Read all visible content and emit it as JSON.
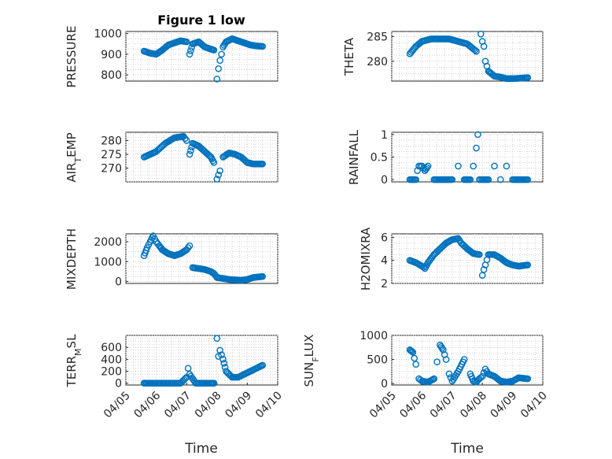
{
  "figure": {
    "title": "Figure 1 low",
    "marker_color": "#0072bd",
    "grid": "dotted"
  },
  "xaxis": {
    "label": "Time",
    "range": [
      "04/05",
      "04/10"
    ],
    "ticks": [
      "04/05",
      "04/06",
      "04/07",
      "04/08",
      "04/09",
      "04/10"
    ]
  },
  "chart_data": [
    {
      "type": "scatter",
      "ylabel": "PRESSURE",
      "ylim": [
        770,
        1010
      ],
      "yticks": [
        "800",
        "900",
        "1000"
      ],
      "x": [
        "04/05.6",
        "04/05.8",
        "04/06.0",
        "04/06.2",
        "04/06.4",
        "04/06.6",
        "04/06.8",
        "04/07.0",
        "04/07.1",
        "04/07.2",
        "04/07.4",
        "04/07.6",
        "04/07.8",
        "04/07.9",
        "04/08.0",
        "04/08.05",
        "04/08.1",
        "04/08.15",
        "04/08.2",
        "04/08.3",
        "04/08.5",
        "04/08.7",
        "04/08.9",
        "04/09.1",
        "04/09.3",
        "04/09.5"
      ],
      "y": [
        915,
        905,
        900,
        920,
        945,
        955,
        965,
        960,
        900,
        950,
        960,
        935,
        925,
        920,
        780,
        830,
        870,
        900,
        935,
        960,
        975,
        965,
        955,
        945,
        940,
        938
      ]
    },
    {
      "type": "scatter",
      "ylabel": "THETA",
      "ylim": [
        276,
        286
      ],
      "yticks": [
        "280",
        "285"
      ],
      "x": [
        "04/05.6",
        "04/05.8",
        "04/06.0",
        "04/06.3",
        "04/06.6",
        "04/06.9",
        "04/07.2",
        "04/07.5",
        "04/07.8",
        "04/07.95",
        "04/08.0",
        "04/08.05",
        "04/08.1",
        "04/08.2",
        "04/08.3",
        "04/08.4",
        "04/08.6",
        "04/08.8",
        "04/09.0",
        "04/09.3",
        "04/09.5"
      ],
      "y": [
        281.5,
        283,
        284,
        284.5,
        284.5,
        284.5,
        284,
        283.5,
        282,
        285.5,
        284,
        283,
        280,
        278,
        277.5,
        277,
        276.8,
        276.5,
        276.5,
        276.6,
        276.7
      ]
    },
    {
      "type": "scatter",
      "ylabel": "AIR_TEMP",
      "ylim": [
        265,
        283
      ],
      "yticks": [
        "270",
        "275",
        "280"
      ],
      "x": [
        "04/05.6",
        "04/05.8",
        "04/06.0",
        "04/06.3",
        "04/06.6",
        "04/06.9",
        "04/07.0",
        "04/07.1",
        "04/07.2",
        "04/07.4",
        "04/07.6",
        "04/07.8",
        "04/07.9",
        "04/08.0",
        "04/08.1",
        "04/08.2",
        "04/08.4",
        "04/08.6",
        "04/08.8",
        "04/09.0",
        "04/09.2",
        "04/09.5"
      ],
      "y": [
        274,
        275,
        276,
        279,
        281,
        281.5,
        280,
        275,
        279,
        278,
        276,
        274,
        272,
        266,
        269,
        274,
        275.5,
        275,
        274,
        272,
        271.5,
        271.5
      ]
    },
    {
      "type": "scatter",
      "ylabel": "RAINFALL",
      "ylim": [
        -0.05,
        1.05
      ],
      "yticks": [
        "0",
        "0.5",
        "1"
      ],
      "x": [
        "04/05.6",
        "04/05.8",
        "04/05.85",
        "04/05.9",
        "04/06.0",
        "04/06.1",
        "04/06.2",
        "04/06.4",
        "04/06.6",
        "04/06.8",
        "04/07.0",
        "04/07.2",
        "04/07.4",
        "04/07.6",
        "04/07.7",
        "04/07.8",
        "04/07.85",
        "04/07.9",
        "04/08.0",
        "04/08.2",
        "04/08.4",
        "04/08.6",
        "04/08.8",
        "04/09.0",
        "04/09.2",
        "04/09.5"
      ],
      "y": [
        0,
        0,
        0.2,
        0.3,
        0.3,
        0.2,
        0.3,
        0,
        0,
        0,
        0,
        0.3,
        0,
        0,
        0.3,
        0.7,
        1.0,
        0,
        0,
        0,
        0.3,
        0,
        0.3,
        0,
        0,
        0
      ]
    },
    {
      "type": "scatter",
      "ylabel": "MIXDEPTH",
      "ylim": [
        -100,
        2400
      ],
      "yticks": [
        "0",
        "1000",
        "2000"
      ],
      "x": [
        "04/05.6",
        "04/05.7",
        "04/05.8",
        "04/05.9",
        "04/06.0",
        "04/06.1",
        "04/06.2",
        "04/06.4",
        "04/06.6",
        "04/06.8",
        "04/07.0",
        "04/07.1",
        "04/07.2",
        "04/07.4",
        "04/07.6",
        "04/07.8",
        "04/07.9",
        "04/08.0",
        "04/08.2",
        "04/08.4",
        "04/08.6",
        "04/08.8",
        "04/09.0",
        "04/09.2",
        "04/09.5"
      ],
      "y": [
        1300,
        1700,
        2000,
        2300,
        2000,
        1800,
        1600,
        1400,
        1300,
        1400,
        1600,
        1800,
        700,
        650,
        600,
        500,
        400,
        200,
        150,
        100,
        80,
        60,
        100,
        200,
        250
      ]
    },
    {
      "type": "scatter",
      "ylabel": "H2OMIXRA",
      "ylim": [
        2,
        6.3
      ],
      "yticks": [
        "2",
        "4",
        "6"
      ],
      "x": [
        "04/05.6",
        "04/05.8",
        "04/06.0",
        "04/06.1",
        "04/06.2",
        "04/06.4",
        "04/06.6",
        "04/06.8",
        "04/07.0",
        "04/07.2",
        "04/07.3",
        "04/07.5",
        "04/07.7",
        "04/07.9",
        "04/08.0",
        "04/08.05",
        "04/08.1",
        "04/08.2",
        "04/08.4",
        "04/08.6",
        "04/08.8",
        "04/09.0",
        "04/09.2",
        "04/09.5"
      ],
      "y": [
        4.0,
        3.8,
        3.5,
        3.3,
        3.8,
        4.5,
        5.0,
        5.5,
        5.8,
        5.9,
        5.5,
        5.0,
        4.6,
        4.5,
        2.7,
        3.2,
        3.6,
        4.5,
        4.5,
        4.2,
        3.8,
        3.6,
        3.5,
        3.6
      ]
    },
    {
      "type": "scatter",
      "ylabel": "TERR_MSL",
      "ylim": [
        -30,
        800
      ],
      "yticks": [
        "0",
        "200",
        "400",
        "600"
      ],
      "x": [
        "04/05.6",
        "04/05.9",
        "04/06.2",
        "04/06.5",
        "04/06.8",
        "04/07.0",
        "04/07.05",
        "04/07.1",
        "04/07.3",
        "04/07.6",
        "04/07.8",
        "04/07.9",
        "04/08.0",
        "04/08.05",
        "04/08.1",
        "04/08.2",
        "04/08.3",
        "04/08.5",
        "04/08.7",
        "04/08.9",
        "04/09.1",
        "04/09.3",
        "04/09.5"
      ],
      "y": [
        0,
        0,
        0,
        0,
        0,
        100,
        250,
        150,
        0,
        0,
        0,
        0,
        750,
        450,
        550,
        400,
        200,
        100,
        100,
        150,
        200,
        250,
        300
      ]
    },
    {
      "type": "scatter",
      "ylabel": "SUN_FLUX",
      "ylim": [
        -30,
        1000
      ],
      "yticks": [
        "0",
        "500",
        "1000"
      ],
      "x": [
        "04/05.6",
        "04/05.7",
        "04/05.8",
        "04/05.9",
        "04/06.0",
        "04/06.2",
        "04/06.4",
        "04/06.5",
        "04/06.6",
        "04/06.7",
        "04/06.8",
        "04/06.9",
        "04/07.0",
        "04/07.2",
        "04/07.4",
        "04/07.6",
        "04/07.7",
        "04/07.8",
        "04/07.9",
        "04/08.0",
        "04/08.1",
        "04/08.2",
        "04/08.4",
        "04/08.6",
        "04/08.8",
        "04/09.0",
        "04/09.2",
        "04/09.5"
      ],
      "y": [
        700,
        650,
        400,
        100,
        50,
        30,
        100,
        450,
        800,
        700,
        500,
        200,
        50,
        250,
        500,
        200,
        50,
        30,
        100,
        150,
        300,
        200,
        150,
        50,
        30,
        50,
        120,
        100
      ]
    }
  ]
}
